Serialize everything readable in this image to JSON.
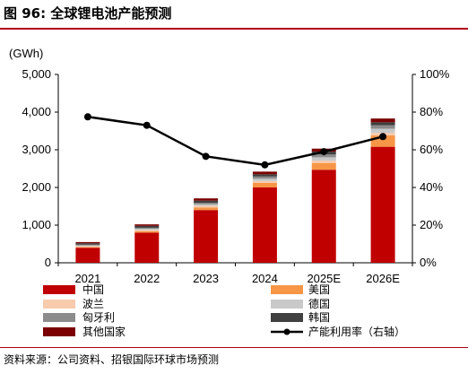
{
  "title": "图 96: 全球锂电池产能预测",
  "source": "资料来源：公司资料、招银国际环球市场预测",
  "chart_data": {
    "type": "bar",
    "stacked": true,
    "unit_label": "(GWh)",
    "categories": [
      "2021",
      "2022",
      "2023",
      "2024",
      "2025E",
      "2026E"
    ],
    "ylim_left": [
      0,
      5000
    ],
    "yticks_left": [
      "0",
      "1,000",
      "2,000",
      "3,000",
      "4,000",
      "5,000"
    ],
    "ylim_right": [
      0,
      1
    ],
    "yticks_right": [
      "0%",
      "20%",
      "40%",
      "60%",
      "80%",
      "100%"
    ],
    "series": [
      {
        "name": "中国",
        "color": "#c00000",
        "values": [
          400,
          800,
          1400,
          2000,
          2470,
          3080
        ]
      },
      {
        "name": "美国",
        "color": "#f79646",
        "values": [
          20,
          40,
          70,
          120,
          180,
          300
        ]
      },
      {
        "name": "波兰",
        "color": "#f8cbad",
        "values": [
          20,
          30,
          40,
          50,
          60,
          70
        ]
      },
      {
        "name": "德国",
        "color": "#c9c9c9",
        "values": [
          20,
          30,
          40,
          60,
          90,
          110
        ]
      },
      {
        "name": "匈牙利",
        "color": "#8c8c8c",
        "values": [
          20,
          30,
          40,
          60,
          80,
          90
        ]
      },
      {
        "name": "韩国",
        "color": "#404040",
        "values": [
          40,
          50,
          60,
          60,
          70,
          80
        ]
      },
      {
        "name": "其他国家",
        "color": "#7b0000",
        "values": [
          30,
          40,
          60,
          70,
          80,
          100
        ]
      }
    ],
    "line": {
      "name": "产能利用率（右轴）",
      "color": "#000000",
      "values": [
        0.775,
        0.73,
        0.565,
        0.52,
        0.59,
        0.67
      ]
    },
    "legend_position": "bottom",
    "grid": false
  }
}
